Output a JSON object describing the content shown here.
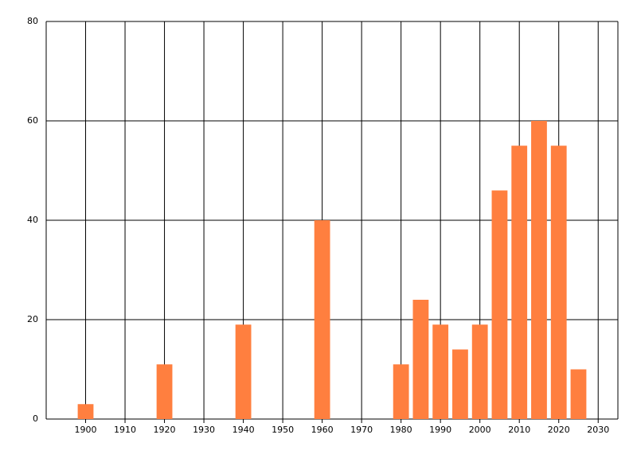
{
  "chart_data": {
    "type": "bar",
    "x": [
      1900,
      1920,
      1940,
      1960,
      1980,
      1985,
      1990,
      1995,
      2000,
      2005,
      2010,
      2015,
      2020,
      2025
    ],
    "values": [
      3,
      11,
      19,
      40,
      11,
      24,
      19,
      14,
      19,
      46,
      55,
      60,
      55,
      10
    ],
    "color": "#ff7f3f",
    "xlim": [
      1890,
      2035
    ],
    "xticks": [
      1900,
      1910,
      1920,
      1930,
      1940,
      1950,
      1960,
      1970,
      1980,
      1990,
      2000,
      2010,
      2020,
      2030
    ],
    "ylim": [
      0,
      80
    ],
    "yticks": [
      0,
      20,
      40,
      60,
      80
    ],
    "grid": true
  }
}
